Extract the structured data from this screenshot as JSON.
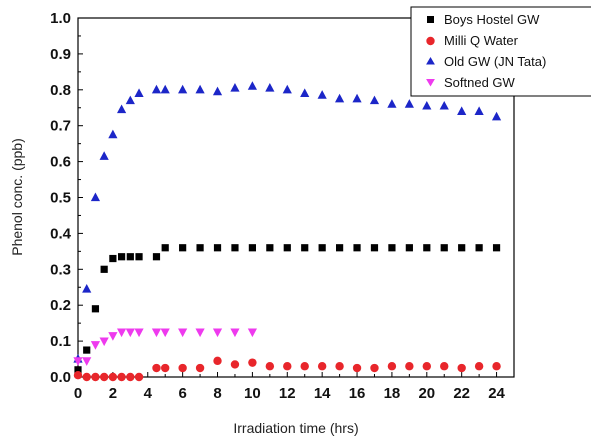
{
  "chart_data": {
    "type": "scatter",
    "xlabel": "Irradiation time (hrs)",
    "ylabel": "Phenol conc. (ppb)",
    "xlim": [
      0,
      25
    ],
    "ylim": [
      0,
      1.0
    ],
    "xticks": [
      "0",
      "2",
      "4",
      "6",
      "8",
      "10",
      "12",
      "14",
      "16",
      "18",
      "20",
      "22",
      "24"
    ],
    "yticks": [
      "0.0",
      "0.1",
      "0.2",
      "0.3",
      "0.4",
      "0.5",
      "0.6",
      "0.7",
      "0.8",
      "0.9",
      "1.0"
    ],
    "legend_position": "top-right",
    "series": [
      {
        "name": "Boys Hostel GW",
        "marker": "square",
        "color": "#000000",
        "x": [
          0,
          0.5,
          1,
          1.5,
          2,
          2.5,
          3,
          3.5,
          4.5,
          5,
          6,
          7,
          8,
          9,
          10,
          11,
          12,
          13,
          14,
          15,
          16,
          17,
          18,
          19,
          20,
          21,
          22,
          23,
          24
        ],
        "y": [
          0.02,
          0.075,
          0.19,
          0.3,
          0.33,
          0.335,
          0.335,
          0.335,
          0.335,
          0.36,
          0.36,
          0.36,
          0.36,
          0.36,
          0.36,
          0.36,
          0.36,
          0.36,
          0.36,
          0.36,
          0.36,
          0.36,
          0.36,
          0.36,
          0.36,
          0.36,
          0.36,
          0.36,
          0.36
        ]
      },
      {
        "name": "Milli Q Water",
        "marker": "circle",
        "color": "#e8262b",
        "x": [
          0,
          0.5,
          1,
          1.5,
          2,
          2.5,
          3,
          3.5,
          4.5,
          5,
          6,
          7,
          8,
          9,
          10,
          11,
          12,
          13,
          14,
          15,
          16,
          17,
          18,
          19,
          20,
          21,
          22,
          23,
          24
        ],
        "y": [
          0.005,
          0.0,
          0.0,
          0.0,
          0.0,
          0.0,
          0.0,
          0.0,
          0.025,
          0.025,
          0.025,
          0.025,
          0.045,
          0.035,
          0.04,
          0.03,
          0.03,
          0.03,
          0.03,
          0.03,
          0.025,
          0.025,
          0.03,
          0.03,
          0.03,
          0.03,
          0.025,
          0.03,
          0.03
        ]
      },
      {
        "name": "Old GW (JN Tata)",
        "marker": "triangle-up",
        "color": "#1c26c8",
        "x": [
          0,
          0.5,
          1,
          1.5,
          2,
          2.5,
          3,
          3.5,
          4.5,
          5,
          6,
          7,
          8,
          9,
          10,
          11,
          12,
          13,
          14,
          15,
          16,
          17,
          18,
          19,
          20,
          21,
          22,
          23,
          24
        ],
        "y": [
          0.05,
          0.245,
          0.5,
          0.615,
          0.675,
          0.745,
          0.77,
          0.79,
          0.8,
          0.8,
          0.8,
          0.8,
          0.795,
          0.805,
          0.81,
          0.805,
          0.8,
          0.79,
          0.785,
          0.775,
          0.775,
          0.77,
          0.76,
          0.76,
          0.755,
          0.755,
          0.74,
          0.74,
          0.725
        ]
      },
      {
        "name": "Softned GW",
        "marker": "triangle-down",
        "color": "#ee3aee",
        "x": [
          0,
          0.5,
          1,
          1.5,
          2,
          2.5,
          3,
          3.5,
          4.5,
          5,
          6,
          7,
          8,
          9,
          10
        ],
        "y": [
          0.045,
          0.045,
          0.09,
          0.1,
          0.115,
          0.125,
          0.125,
          0.125,
          0.125,
          0.125,
          0.125,
          0.125,
          0.125,
          0.125,
          0.125
        ]
      }
    ]
  }
}
